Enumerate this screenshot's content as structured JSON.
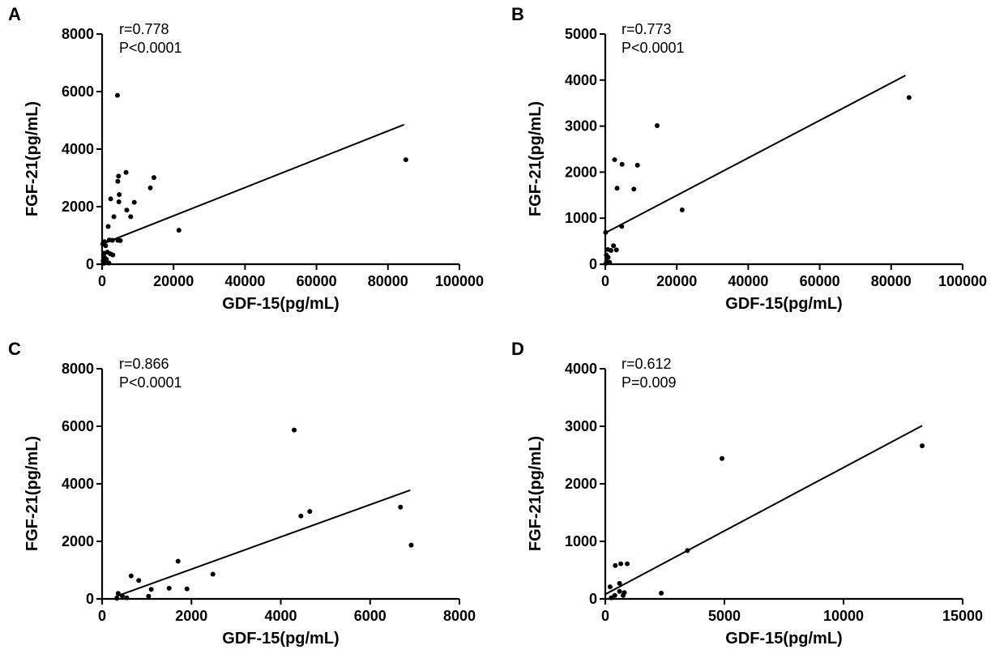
{
  "chart_data": [
    {
      "type": "scatter",
      "panel": "A",
      "xlabel": "GDF-15(pg/mL)",
      "ylabel": "FGF-21(pg/mL)",
      "xlim": [
        0,
        100000
      ],
      "ylim": [
        0,
        8000
      ],
      "xticks": [
        "0",
        "20000",
        "40000",
        "60000",
        "80000",
        "100000"
      ],
      "yticks": [
        "0",
        "2000",
        "4000",
        "6000",
        "8000"
      ],
      "annotations": [
        "r=0.778",
        "P<0.0001"
      ],
      "regression": [
        [
          0,
          700
        ],
        [
          84500,
          4850
        ]
      ],
      "points": [
        [
          4300,
          5870
        ],
        [
          85000,
          3630
        ],
        [
          14500,
          3010
        ],
        [
          4600,
          3060
        ],
        [
          4400,
          2880
        ],
        [
          6700,
          3190
        ],
        [
          13500,
          2650
        ],
        [
          2400,
          2270
        ],
        [
          4800,
          2420
        ],
        [
          4700,
          2170
        ],
        [
          9000,
          2150
        ],
        [
          21500,
          1180
        ],
        [
          6900,
          1880
        ],
        [
          8000,
          1650
        ],
        [
          3300,
          1650
        ],
        [
          1700,
          1310
        ],
        [
          400,
          770
        ],
        [
          200,
          700
        ],
        [
          700,
          780
        ],
        [
          1000,
          640
        ],
        [
          2000,
          840
        ],
        [
          2900,
          830
        ],
        [
          4400,
          830
        ],
        [
          5100,
          820
        ],
        [
          1500,
          420
        ],
        [
          600,
          380
        ],
        [
          2300,
          360
        ],
        [
          3000,
          320
        ],
        [
          700,
          230
        ],
        [
          1200,
          170
        ],
        [
          900,
          80
        ],
        [
          1900,
          40
        ],
        [
          300,
          110
        ],
        [
          500,
          30
        ]
      ]
    },
    {
      "type": "scatter",
      "panel": "B",
      "xlabel": "GDF-15(pg/mL)",
      "ylabel": "FGF-21(pg/mL)",
      "xlim": [
        0,
        100000
      ],
      "ylim": [
        0,
        5000
      ],
      "xticks": [
        "0",
        "20000",
        "40000",
        "60000",
        "80000",
        "100000"
      ],
      "yticks": [
        "0",
        "1000",
        "2000",
        "3000",
        "4000",
        "5000"
      ],
      "annotations": [
        "r=0.773",
        "P<0.0001"
      ],
      "regression": [
        [
          0,
          680
        ],
        [
          84000,
          4100
        ]
      ],
      "points": [
        [
          85000,
          3620
        ],
        [
          14500,
          3010
        ],
        [
          2600,
          2270
        ],
        [
          4700,
          2170
        ],
        [
          9000,
          2150
        ],
        [
          3300,
          1650
        ],
        [
          8000,
          1630
        ],
        [
          21500,
          1180
        ],
        [
          4600,
          820
        ],
        [
          100,
          690
        ],
        [
          700,
          320
        ],
        [
          1600,
          300
        ],
        [
          2300,
          400
        ],
        [
          3100,
          310
        ],
        [
          300,
          200
        ],
        [
          800,
          150
        ],
        [
          500,
          60
        ],
        [
          1200,
          40
        ],
        [
          200,
          20
        ]
      ]
    },
    {
      "type": "scatter",
      "panel": "C",
      "xlabel": "GDF-15(pg/mL)",
      "ylabel": "FGF-21(pg/mL)",
      "xlim": [
        0,
        8000
      ],
      "ylim": [
        0,
        8000
      ],
      "xticks": [
        "0",
        "2000",
        "4000",
        "6000",
        "8000"
      ],
      "yticks": [
        "0",
        "2000",
        "4000",
        "6000",
        "8000"
      ],
      "annotations": [
        "r=0.866",
        "P<0.0001"
      ],
      "regression": [
        [
          300,
          80
        ],
        [
          6900,
          3780
        ]
      ],
      "points": [
        [
          4300,
          5870
        ],
        [
          6680,
          3190
        ],
        [
          4650,
          3040
        ],
        [
          4450,
          2880
        ],
        [
          6920,
          1870
        ],
        [
          1700,
          1310
        ],
        [
          2480,
          860
        ],
        [
          650,
          800
        ],
        [
          820,
          640
        ],
        [
          1500,
          370
        ],
        [
          1900,
          350
        ],
        [
          1100,
          330
        ],
        [
          360,
          190
        ],
        [
          450,
          110
        ],
        [
          1040,
          90
        ],
        [
          550,
          40
        ],
        [
          330,
          20
        ]
      ]
    },
    {
      "type": "scatter",
      "panel": "D",
      "xlabel": "GDF-15(pg/mL)",
      "ylabel": "FGF-21(pg/mL)",
      "xlim": [
        0,
        15000
      ],
      "ylim": [
        0,
        4000
      ],
      "xticks": [
        "0",
        "5000",
        "10000",
        "15000"
      ],
      "yticks": [
        "0",
        "1000",
        "2000",
        "3000",
        "4000"
      ],
      "annotations": [
        "r=0.612",
        "P=0.009"
      ],
      "regression": [
        [
          0,
          80
        ],
        [
          13300,
          3010
        ]
      ],
      "points": [
        [
          13300,
          2660
        ],
        [
          4900,
          2440
        ],
        [
          3450,
          840
        ],
        [
          420,
          580
        ],
        [
          650,
          610
        ],
        [
          920,
          610
        ],
        [
          600,
          270
        ],
        [
          200,
          210
        ],
        [
          800,
          110
        ],
        [
          2350,
          100
        ],
        [
          600,
          130
        ],
        [
          400,
          60
        ],
        [
          750,
          60
        ],
        [
          250,
          20
        ]
      ]
    }
  ]
}
